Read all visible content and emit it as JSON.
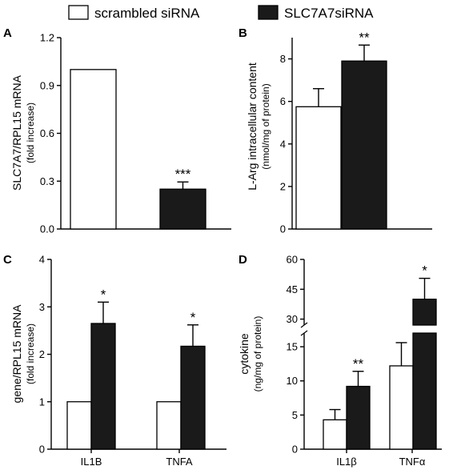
{
  "legend": {
    "items": [
      {
        "label": "scrambled siRNA",
        "color": "#ffffff"
      },
      {
        "label": "SLC7A7siRNA",
        "color": "#1a1a1a"
      }
    ]
  },
  "chart_data": [
    {
      "panel": "A",
      "type": "bar",
      "ylabel": "SLC7A7/RPL15 mRNA",
      "ylabel2": "(fold increase)",
      "ylim": [
        0,
        1.2
      ],
      "yticks": [
        "0.0",
        "0.3",
        "0.6",
        "0.9",
        "1.2"
      ],
      "categories": [
        ""
      ],
      "series": [
        {
          "name": "scrambled siRNA",
          "values": [
            1.0
          ],
          "errors": [
            0
          ]
        },
        {
          "name": "SLC7A7siRNA",
          "values": [
            0.25
          ],
          "errors": [
            0.045
          ]
        }
      ],
      "annotations": [
        {
          "series": 1,
          "category": 0,
          "text": "***"
        }
      ]
    },
    {
      "panel": "B",
      "type": "bar",
      "ylabel": "L-Arg intracellular content",
      "ylabel2": "(nmol/mg of protein)",
      "ylim": [
        0,
        9
      ],
      "yticks": [
        "0",
        "2",
        "4",
        "6",
        "8"
      ],
      "categories": [
        ""
      ],
      "series": [
        {
          "name": "scrambled siRNA",
          "values": [
            5.75
          ],
          "errors": [
            0.85
          ]
        },
        {
          "name": "SLC7A7siRNA",
          "values": [
            7.9
          ],
          "errors": [
            0.75
          ]
        }
      ],
      "annotations": [
        {
          "series": 1,
          "category": 0,
          "text": "**"
        }
      ]
    },
    {
      "panel": "C",
      "type": "bar",
      "ylabel": "gene/RPL15 mRNA",
      "ylabel2": "(fold increase)",
      "ylim": [
        0,
        4
      ],
      "yticks": [
        "0",
        "1",
        "2",
        "3",
        "4"
      ],
      "categories": [
        "IL1B",
        "TNFA"
      ],
      "series": [
        {
          "name": "scrambled siRNA",
          "values": [
            1.0,
            1.0
          ],
          "errors": [
            0,
            0
          ]
        },
        {
          "name": "SLC7A7siRNA",
          "values": [
            2.65,
            2.17
          ],
          "errors": [
            0.45,
            0.45
          ]
        }
      ],
      "annotations": [
        {
          "series": 1,
          "category": 0,
          "text": "*"
        },
        {
          "series": 1,
          "category": 1,
          "text": "*"
        }
      ]
    },
    {
      "panel": "D",
      "type": "bar",
      "broken_axis": true,
      "ylabel": "cytokine",
      "ylabel2": "(ng/mg of protein)",
      "ylim_lower": [
        0,
        17
      ],
      "ylim_upper": [
        27,
        60
      ],
      "yticks_lower": [
        "0",
        "5",
        "10",
        "15"
      ],
      "yticks_upper": [
        "30",
        "45",
        "60"
      ],
      "categories": [
        "IL1β",
        "TNFα"
      ],
      "series": [
        {
          "name": "scrambled siRNA",
          "values": [
            4.3,
            12.2
          ],
          "errors": [
            1.5,
            3.4
          ]
        },
        {
          "name": "SLC7A7siRNA",
          "values": [
            9.2,
            40.0
          ],
          "errors": [
            2.2,
            10.5
          ]
        }
      ],
      "annotations": [
        {
          "series": 1,
          "category": 0,
          "text": "**"
        },
        {
          "series": 1,
          "category": 1,
          "text": "*"
        }
      ]
    }
  ]
}
